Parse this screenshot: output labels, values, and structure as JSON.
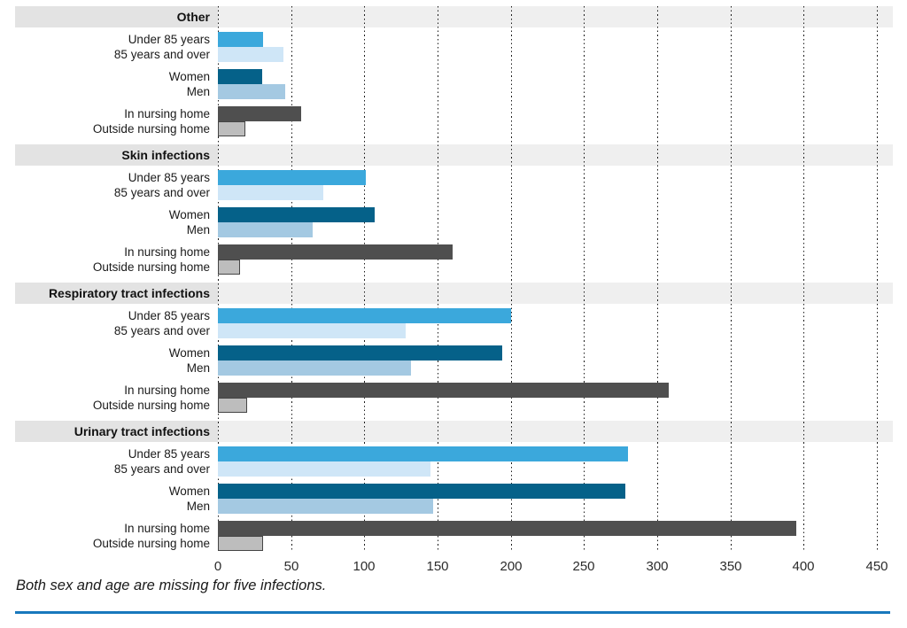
{
  "chart_data": {
    "type": "bar",
    "orientation": "horizontal",
    "x_axis": {
      "min": 0,
      "max": 450,
      "tick_step": 50,
      "ticks": [
        0,
        50,
        100,
        150,
        200,
        250,
        300,
        350,
        400,
        450
      ],
      "grid": "dotted-vertical"
    },
    "row_labels": [
      "Under 85 years",
      "85 years and over",
      "Women",
      "Men",
      "In nursing home",
      "Outside nursing home"
    ],
    "sections": [
      {
        "title": "Other",
        "values": [
          31,
          45,
          30,
          46,
          57,
          19
        ]
      },
      {
        "title": "Skin infections",
        "values": [
          101,
          72,
          107,
          65,
          160,
          15
        ]
      },
      {
        "title": "Respiratory tract infections",
        "values": [
          200,
          128,
          194,
          132,
          308,
          20
        ]
      },
      {
        "title": "Urinary tract infections",
        "values": [
          280,
          145,
          278,
          147,
          395,
          31
        ]
      }
    ],
    "colors": {
      "under_85": "#3BA8DC",
      "85_and_over": "#CFE6F7",
      "women": "#056189",
      "men": "#A4C9E2",
      "in_nursing_home": "#4F4F4F",
      "outside_nursing_home": "#BDBDBD",
      "outside_border": "#454545",
      "header_band_left": "#E3E3E3",
      "header_band_right": "#EFEFEF",
      "rule": "#1878BC"
    },
    "legend": "none",
    "footnote": "Both sex and age are missing for five infections."
  }
}
